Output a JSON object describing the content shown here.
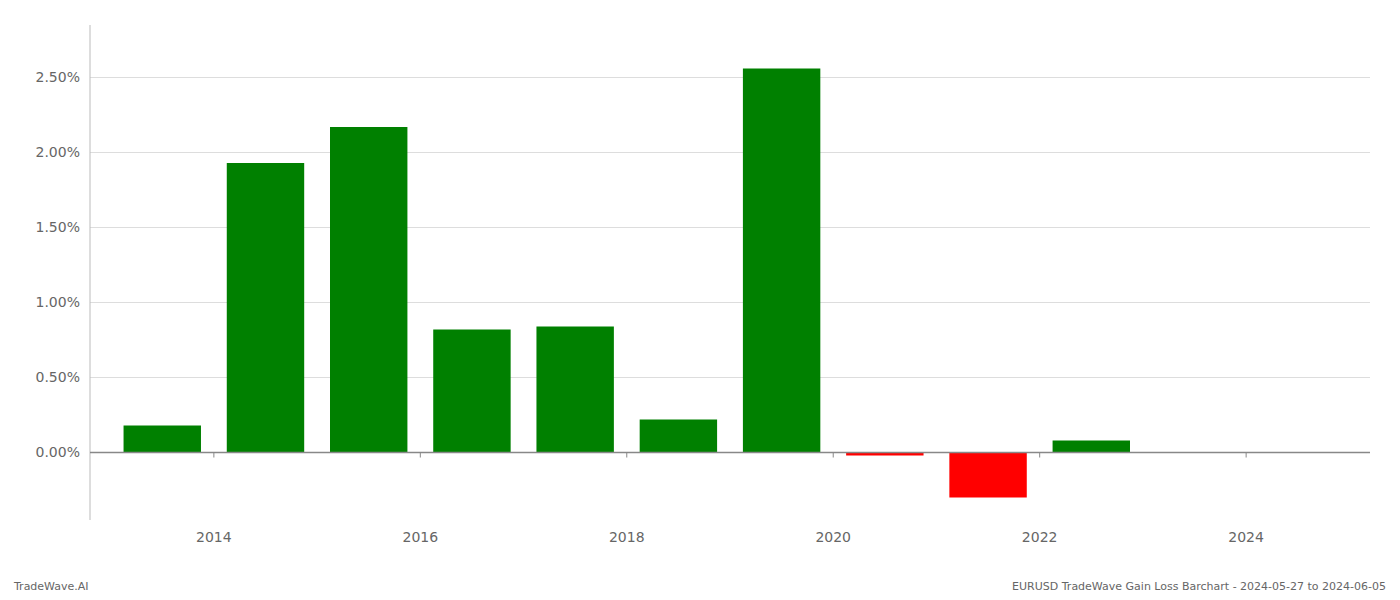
{
  "chart_data": {
    "type": "bar",
    "x": [
      2013.5,
      2014.5,
      2015.5,
      2016.5,
      2017.5,
      2018.5,
      2019.5,
      2020.5,
      2021.5,
      2022.5,
      2023.5
    ],
    "values": [
      0.0018,
      0.0193,
      0.0217,
      0.0082,
      0.0084,
      0.0022,
      0.0256,
      -0.0002,
      -0.003,
      0.0008,
      0.0
    ],
    "colors": [
      "#008000",
      "#008000",
      "#008000",
      "#008000",
      "#008000",
      "#008000",
      "#008000",
      "#ff0000",
      "#ff0000",
      "#008000",
      "#008000"
    ],
    "xlim": [
      2012.8,
      2025.2
    ],
    "xticks": [
      2014,
      2016,
      2018,
      2020,
      2022,
      2024
    ],
    "ylim": [
      -0.0045,
      0.0285
    ],
    "yticks": [
      {
        "value": 0.0,
        "label": "0.00%"
      },
      {
        "value": 0.005,
        "label": "0.50%"
      },
      {
        "value": 0.01,
        "label": "1.00%"
      },
      {
        "value": 0.015,
        "label": "1.50%"
      },
      {
        "value": 0.02,
        "label": "2.00%"
      },
      {
        "value": 0.025,
        "label": "2.50%"
      }
    ],
    "grid": true,
    "annotations": [
      "TradeWave.AI",
      "EURUSD TradeWave Gain Loss Barchart - 2024-05-27 to 2024-06-05"
    ]
  }
}
